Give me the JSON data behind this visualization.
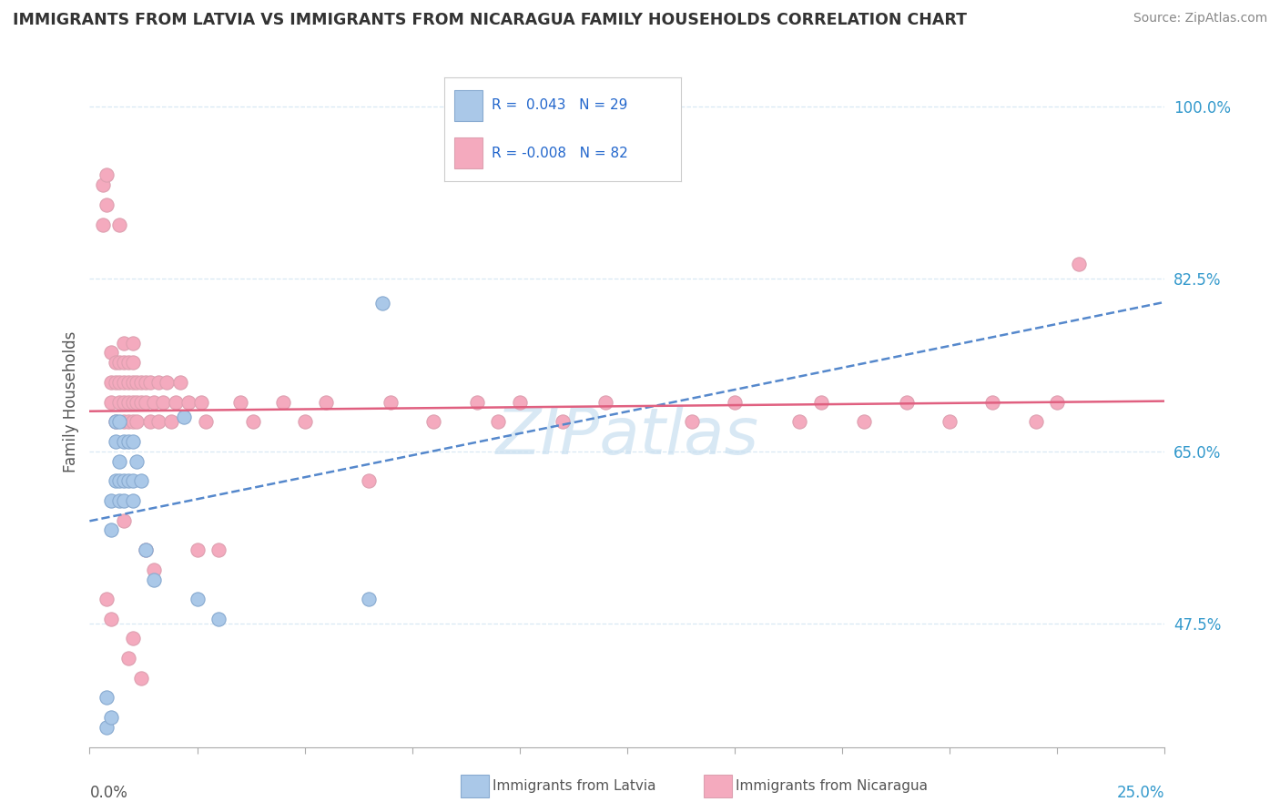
{
  "title": "IMMIGRANTS FROM LATVIA VS IMMIGRANTS FROM NICARAGUA FAMILY HOUSEHOLDS CORRELATION CHART",
  "source": "Source: ZipAtlas.com",
  "ylabel": "Family Households",
  "ytick_labels": [
    "47.5%",
    "65.0%",
    "82.5%",
    "100.0%"
  ],
  "ytick_values": [
    0.475,
    0.65,
    0.825,
    1.0
  ],
  "xlim": [
    0.0,
    0.25
  ],
  "ylim": [
    0.35,
    1.05
  ],
  "legend_r1": "R =  0.043",
  "legend_n1": "N = 29",
  "legend_r2": "R = -0.008",
  "legend_n2": "N = 82",
  "color_latvia": "#aac8e8",
  "color_nicaragua": "#f4aabe",
  "trendline_latvia_color": "#5588cc",
  "trendline_nicaragua_color": "#e06080",
  "background_color": "#ffffff",
  "latvia_x": [
    0.004,
    0.004,
    0.005,
    0.005,
    0.005,
    0.006,
    0.006,
    0.006,
    0.007,
    0.007,
    0.007,
    0.007,
    0.008,
    0.008,
    0.008,
    0.009,
    0.009,
    0.01,
    0.01,
    0.01,
    0.011,
    0.012,
    0.013,
    0.015,
    0.022,
    0.025,
    0.03,
    0.065,
    0.068
  ],
  "latvia_y": [
    0.37,
    0.4,
    0.38,
    0.57,
    0.6,
    0.62,
    0.66,
    0.68,
    0.6,
    0.62,
    0.64,
    0.68,
    0.6,
    0.62,
    0.66,
    0.62,
    0.66,
    0.6,
    0.62,
    0.66,
    0.64,
    0.62,
    0.55,
    0.52,
    0.685,
    0.5,
    0.48,
    0.5,
    0.8
  ],
  "nicaragua_x": [
    0.003,
    0.003,
    0.004,
    0.004,
    0.005,
    0.005,
    0.005,
    0.006,
    0.006,
    0.006,
    0.007,
    0.007,
    0.007,
    0.007,
    0.008,
    0.008,
    0.008,
    0.008,
    0.008,
    0.009,
    0.009,
    0.009,
    0.009,
    0.01,
    0.01,
    0.01,
    0.01,
    0.01,
    0.011,
    0.011,
    0.011,
    0.012,
    0.012,
    0.013,
    0.013,
    0.014,
    0.014,
    0.015,
    0.016,
    0.016,
    0.017,
    0.018,
    0.019,
    0.02,
    0.021,
    0.023,
    0.025,
    0.026,
    0.027,
    0.03,
    0.035,
    0.038,
    0.045,
    0.05,
    0.055,
    0.065,
    0.07,
    0.08,
    0.09,
    0.095,
    0.1,
    0.11,
    0.12,
    0.14,
    0.15,
    0.165,
    0.17,
    0.18,
    0.19,
    0.2,
    0.21,
    0.22,
    0.225,
    0.23,
    0.004,
    0.005,
    0.008,
    0.009,
    0.01,
    0.012,
    0.013,
    0.015
  ],
  "nicaragua_y": [
    0.88,
    0.92,
    0.9,
    0.93,
    0.7,
    0.72,
    0.75,
    0.68,
    0.72,
    0.74,
    0.7,
    0.72,
    0.74,
    0.88,
    0.68,
    0.7,
    0.72,
    0.74,
    0.76,
    0.68,
    0.7,
    0.72,
    0.74,
    0.68,
    0.7,
    0.72,
    0.74,
    0.76,
    0.68,
    0.7,
    0.72,
    0.7,
    0.72,
    0.7,
    0.72,
    0.68,
    0.72,
    0.7,
    0.68,
    0.72,
    0.7,
    0.72,
    0.68,
    0.7,
    0.72,
    0.7,
    0.55,
    0.7,
    0.68,
    0.55,
    0.7,
    0.68,
    0.7,
    0.68,
    0.7,
    0.62,
    0.7,
    0.68,
    0.7,
    0.68,
    0.7,
    0.68,
    0.7,
    0.68,
    0.7,
    0.68,
    0.7,
    0.68,
    0.7,
    0.68,
    0.7,
    0.68,
    0.7,
    0.84,
    0.5,
    0.48,
    0.58,
    0.44,
    0.46,
    0.42,
    0.55,
    0.53
  ],
  "watermark": "ZIPatlas",
  "watermark_color": "#c8dff0",
  "grid_color": "#d8e8f4",
  "grid_linestyle": "--"
}
